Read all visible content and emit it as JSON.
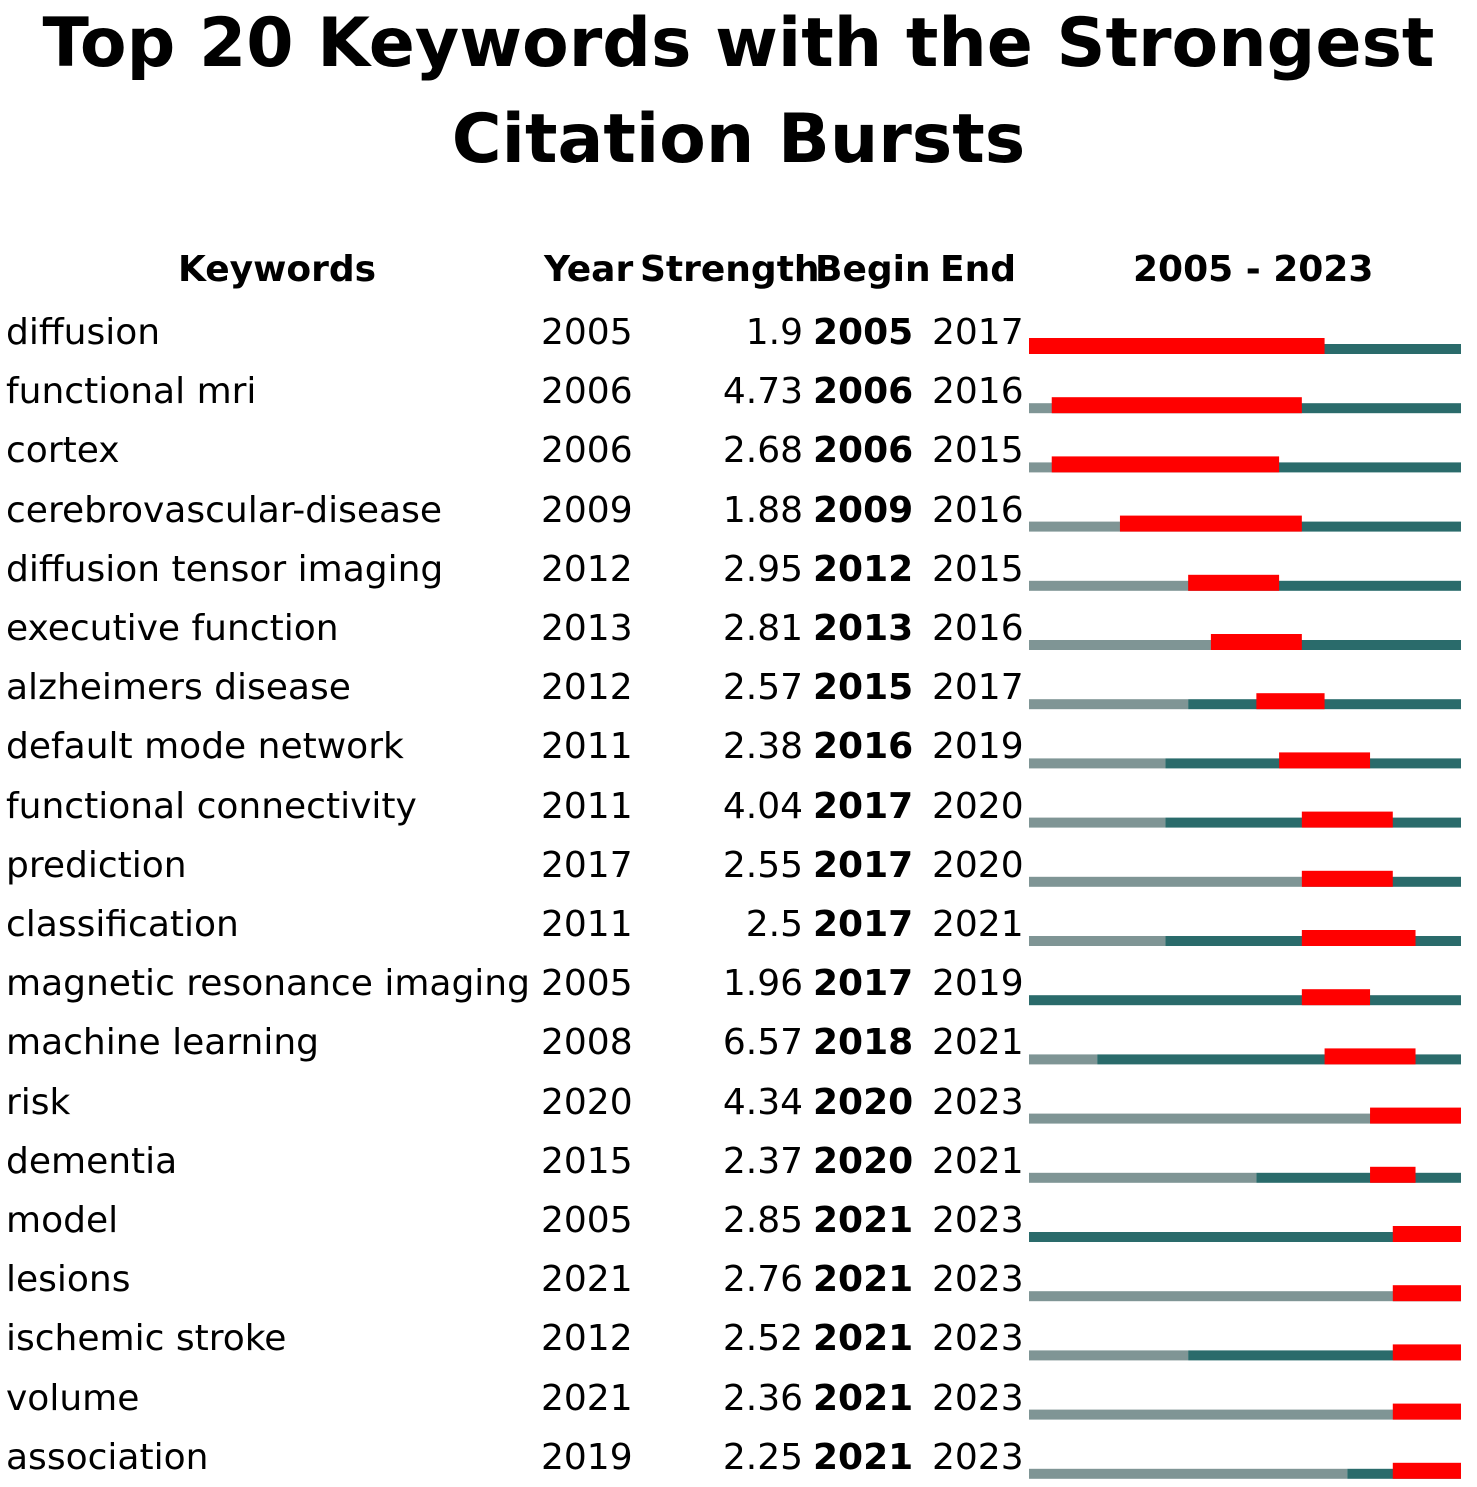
{
  "title": {
    "line1": "Top 20 Keywords with the Strongest",
    "line2": "Citation Bursts"
  },
  "headers": {
    "keywords": "Keywords",
    "year": "Year",
    "strength": "Strength",
    "begin": "Begin",
    "end": "End",
    "range": "2005 - 2023"
  },
  "colors": {
    "burst": "#ff0000",
    "active": "#2a6b6b",
    "inactive": "#7f9595"
  },
  "chart_data": {
    "type": "table",
    "timeline_start": 2005,
    "timeline_end": 2023,
    "columns": [
      "Keywords",
      "Year",
      "Strength",
      "Begin",
      "End"
    ],
    "rows": [
      {
        "keyword": "diffusion",
        "year": 2005,
        "strength": "1.9",
        "begin": 2005,
        "end": 2017
      },
      {
        "keyword": "functional mri",
        "year": 2006,
        "strength": "4.73",
        "begin": 2006,
        "end": 2016
      },
      {
        "keyword": "cortex",
        "year": 2006,
        "strength": "2.68",
        "begin": 2006,
        "end": 2015
      },
      {
        "keyword": "cerebrovascular-disease",
        "year": 2009,
        "strength": "1.88",
        "begin": 2009,
        "end": 2016
      },
      {
        "keyword": "diffusion tensor imaging",
        "year": 2012,
        "strength": "2.95",
        "begin": 2012,
        "end": 2015
      },
      {
        "keyword": "executive function",
        "year": 2013,
        "strength": "2.81",
        "begin": 2013,
        "end": 2016
      },
      {
        "keyword": "alzheimers disease",
        "year": 2012,
        "strength": "2.57",
        "begin": 2015,
        "end": 2017
      },
      {
        "keyword": "default mode network",
        "year": 2011,
        "strength": "2.38",
        "begin": 2016,
        "end": 2019
      },
      {
        "keyword": "functional connectivity",
        "year": 2011,
        "strength": "4.04",
        "begin": 2017,
        "end": 2020
      },
      {
        "keyword": "prediction",
        "year": 2017,
        "strength": "2.55",
        "begin": 2017,
        "end": 2020
      },
      {
        "keyword": "classification",
        "year": 2011,
        "strength": "2.5",
        "begin": 2017,
        "end": 2021
      },
      {
        "keyword": "magnetic resonance imaging",
        "year": 2005,
        "strength": "1.96",
        "begin": 2017,
        "end": 2019
      },
      {
        "keyword": "machine learning",
        "year": 2008,
        "strength": "6.57",
        "begin": 2018,
        "end": 2021
      },
      {
        "keyword": "risk",
        "year": 2020,
        "strength": "4.34",
        "begin": 2020,
        "end": 2023
      },
      {
        "keyword": "dementia",
        "year": 2015,
        "strength": "2.37",
        "begin": 2020,
        "end": 2021
      },
      {
        "keyword": "model",
        "year": 2005,
        "strength": "2.85",
        "begin": 2021,
        "end": 2023
      },
      {
        "keyword": "lesions",
        "year": 2021,
        "strength": "2.76",
        "begin": 2021,
        "end": 2023
      },
      {
        "keyword": "ischemic stroke",
        "year": 2012,
        "strength": "2.52",
        "begin": 2021,
        "end": 2023
      },
      {
        "keyword": "volume",
        "year": 2021,
        "strength": "2.36",
        "begin": 2021,
        "end": 2023
      },
      {
        "keyword": "association",
        "year": 2019,
        "strength": "2.25",
        "begin": 2021,
        "end": 2023
      }
    ]
  }
}
